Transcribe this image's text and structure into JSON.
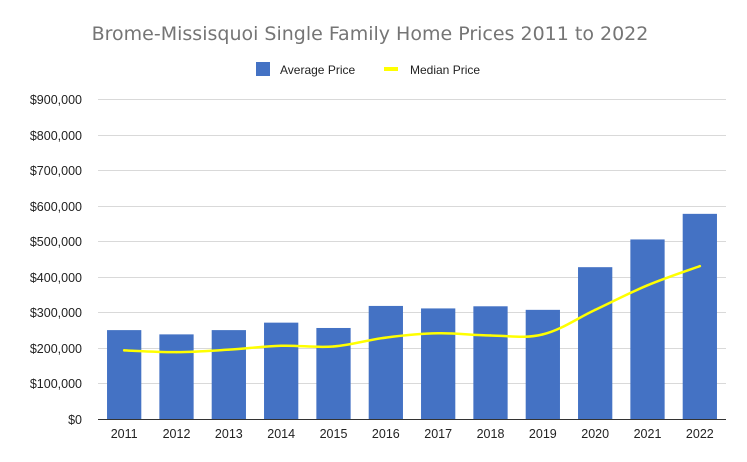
{
  "chart_data": {
    "type": "bar",
    "title": "Brome-Missisquoi Single Family Home Prices 2011 to 2022",
    "xlabel": "",
    "ylabel": "",
    "categories": [
      "2011",
      "2012",
      "2013",
      "2014",
      "2015",
      "2016",
      "2017",
      "2018",
      "2019",
      "2020",
      "2021",
      "2022"
    ],
    "series": [
      {
        "name": "Average Price",
        "type": "bar",
        "color": "#4472c4",
        "values": [
          250000,
          238000,
          250000,
          271000,
          256000,
          318000,
          311000,
          317000,
          307000,
          427000,
          505000,
          577000
        ]
      },
      {
        "name": "Median Price",
        "type": "line",
        "color": "#ffff00",
        "values": [
          193000,
          188000,
          195000,
          206000,
          204000,
          229000,
          241000,
          235000,
          238000,
          307000,
          376000,
          430000
        ]
      }
    ],
    "ylim": [
      0,
      900000
    ],
    "yticks": [
      0,
      100000,
      200000,
      300000,
      400000,
      500000,
      600000,
      700000,
      800000,
      900000
    ],
    "ytick_labels": [
      "$0",
      "$100,000",
      "$200,000",
      "$300,000",
      "$400,000",
      "$500,000",
      "$600,000",
      "$700,000",
      "$800,000",
      "$900,000"
    ],
    "grid": true,
    "legend_position": "top"
  }
}
